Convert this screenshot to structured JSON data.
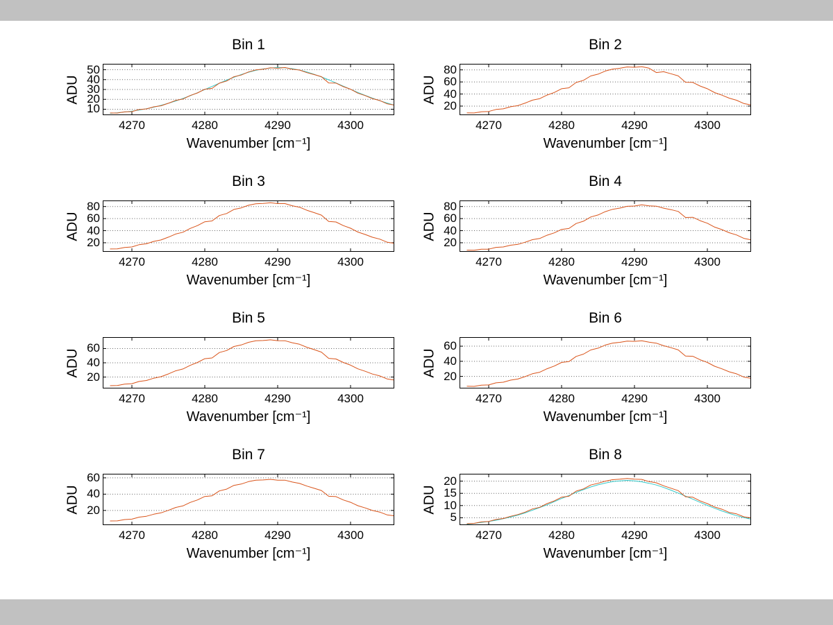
{
  "window": {
    "background": "#ffffff",
    "chrome_color": "#c1c1c1"
  },
  "palette": {
    "axis_color": "#000000",
    "grid_color": "#606060",
    "orange": "#D95319",
    "cyan": "#33C9C9"
  },
  "chart_data": [
    {
      "type": "line",
      "title": "Bin 1",
      "xlabel": "Wavenumber [cm⁻¹]",
      "ylabel": "ADU",
      "xlim": [
        4266,
        4306
      ],
      "ylim": [
        4,
        56
      ],
      "xticks": [
        4270,
        4280,
        4290,
        4300
      ],
      "yticks": [
        10,
        20,
        30,
        40,
        50
      ],
      "grid": "horizontal-dotted",
      "x_start": 4267,
      "x_step": 1,
      "series": [
        {
          "name": "cyan",
          "color": "#33C9C9",
          "values": [
            5.8,
            6.4,
            7.2,
            8.1,
            9.2,
            10.5,
            12.1,
            13.9,
            16.0,
            18.3,
            20.9,
            23.7,
            26.7,
            29.9,
            33.1,
            36.3,
            39.5,
            42.4,
            45.1,
            47.5,
            49.4,
            50.8,
            51.7,
            52.3,
            52.0,
            51.1,
            49.7,
            47.8,
            45.4,
            42.7,
            39.8,
            36.6,
            33.4,
            30.2,
            27.0,
            24.0,
            21.2,
            18.6,
            16.3,
            14.2
          ]
        },
        {
          "name": "orange",
          "color": "#D95319",
          "values": [
            6.2,
            6.1,
            7.4,
            7.6,
            9.7,
            10.3,
            12.4,
            13.5,
            16.0,
            18.9,
            20.3,
            23.9,
            26.5,
            30.3,
            31.1,
            36.4,
            38.6,
            42.9,
            44.6,
            47.8,
            49.8,
            50.5,
            51.9,
            51.5,
            52.2,
            50.6,
            49.7,
            47.1,
            45.1,
            43.0,
            36.6,
            36.5,
            32.9,
            30.3,
            26.3,
            23.8,
            20.8,
            18.8,
            15.5,
            14.2
          ]
        }
      ]
    },
    {
      "type": "line",
      "title": "Bin 2",
      "xlabel": "Wavenumber [cm⁻¹]",
      "ylabel": "ADU",
      "xlim": [
        4266,
        4306
      ],
      "ylim": [
        5,
        90
      ],
      "xticks": [
        4270,
        4280,
        4290,
        4300
      ],
      "yticks": [
        20,
        40,
        60,
        80
      ],
      "grid": "horizontal-dotted",
      "x_start": 4267,
      "x_step": 1,
      "series": [
        {
          "name": "orange",
          "color": "#D95319",
          "values": [
            8.7,
            8.6,
            10.6,
            11.1,
            14.4,
            15.5,
            18.9,
            20.9,
            25.0,
            29.8,
            32.3,
            38.2,
            42.6,
            48.8,
            50.3,
            59.1,
            62.7,
            69.9,
            72.9,
            78.0,
            81.3,
            82.7,
            84.8,
            84.3,
            85.3,
            82.8,
            75.5,
            76.9,
            73.6,
            70.0,
            59.4,
            59.2,
            53.2,
            48.8,
            42.3,
            38.1,
            33.1,
            29.7,
            24.3,
            22.0
          ]
        }
      ]
    },
    {
      "type": "line",
      "title": "Bin 3",
      "xlabel": "Wavenumber [cm⁻¹]",
      "ylabel": "ADU",
      "xlim": [
        4266,
        4306
      ],
      "ylim": [
        5,
        90
      ],
      "xticks": [
        4270,
        4280,
        4290,
        4300
      ],
      "yticks": [
        20,
        40,
        60,
        80
      ],
      "grid": "horizontal-dotted",
      "x_start": 4267,
      "x_step": 1,
      "series": [
        {
          "name": "orange",
          "color": "#D95319",
          "values": [
            9.7,
            9.9,
            12.2,
            13.0,
            16.8,
            18.3,
            22.2,
            24.6,
            29.2,
            34.4,
            37.4,
            43.7,
            48.4,
            54.7,
            56.1,
            65.1,
            68.4,
            75.2,
            77.7,
            82.1,
            84.6,
            85.1,
            86.3,
            84.8,
            84.8,
            81.3,
            78.9,
            73.8,
            69.9,
            65.8,
            55.2,
            54.4,
            48.4,
            44.0,
            37.7,
            33.7,
            29.1,
            26.0,
            21.0,
            19.1
          ]
        }
      ]
    },
    {
      "type": "line",
      "title": "Bin 4",
      "xlabel": "Wavenumber [cm⁻¹]",
      "ylabel": "ADU",
      "xlim": [
        4266,
        4306
      ],
      "ylim": [
        5,
        90
      ],
      "xticks": [
        4270,
        4280,
        4290,
        4300
      ],
      "yticks": [
        20,
        40,
        60,
        80
      ],
      "grid": "horizontal-dotted",
      "x_start": 4267,
      "x_step": 1,
      "series": [
        {
          "name": "orange",
          "color": "#D95319",
          "values": [
            7.8,
            7.5,
            9.2,
            9.4,
            12.3,
            13.0,
            15.9,
            17.3,
            20.9,
            25.1,
            27.1,
            32.4,
            36.4,
            42.1,
            43.6,
            51.9,
            55.7,
            62.7,
            66.0,
            71.5,
            75.4,
            77.4,
            80.4,
            80.8,
            82.8,
            81.2,
            80.6,
            77.2,
            74.8,
            71.9,
            61.9,
            62.2,
            56.6,
            52.3,
            45.9,
            41.7,
            36.6,
            32.9,
            27.3,
            24.7
          ]
        }
      ]
    },
    {
      "type": "line",
      "title": "Bin 5",
      "xlabel": "Wavenumber [cm⁻¹]",
      "ylabel": "ADU",
      "xlim": [
        4266,
        4306
      ],
      "ylim": [
        4,
        76
      ],
      "xticks": [
        4270,
        4280,
        4290,
        4300
      ],
      "yticks": [
        20,
        40,
        60
      ],
      "grid": "horizontal-dotted",
      "x_start": 4267,
      "x_step": 1,
      "series": [
        {
          "name": "orange",
          "color": "#D95319",
          "values": [
            7.9,
            8.1,
            10.0,
            10.7,
            13.8,
            15.2,
            18.4,
            20.5,
            24.3,
            28.7,
            31.3,
            36.4,
            40.5,
            45.7,
            46.8,
            54.4,
            57.2,
            62.9,
            65.0,
            68.7,
            70.8,
            71.2,
            72.2,
            71.0,
            70.9,
            68.1,
            66.0,
            61.8,
            58.5,
            55.0,
            46.2,
            45.4,
            40.5,
            36.7,
            31.5,
            28.1,
            24.2,
            21.6,
            17.4,
            15.8
          ]
        }
      ]
    },
    {
      "type": "line",
      "title": "Bin 6",
      "xlabel": "Wavenumber [cm⁻¹]",
      "ylabel": "ADU",
      "xlim": [
        4266,
        4306
      ],
      "ylim": [
        4,
        72
      ],
      "xticks": [
        4270,
        4280,
        4290,
        4300
      ],
      "yticks": [
        20,
        40,
        60
      ],
      "grid": "horizontal-dotted",
      "x_start": 4267,
      "x_step": 1,
      "series": [
        {
          "name": "orange",
          "color": "#D95319",
          "values": [
            6.9,
            6.8,
            8.3,
            8.7,
            11.4,
            12.3,
            15.0,
            16.5,
            19.7,
            23.5,
            25.5,
            30.1,
            33.7,
            38.5,
            39.6,
            46.5,
            49.5,
            55.0,
            57.4,
            61.5,
            64.1,
            65.1,
            66.8,
            66.4,
            67.2,
            65.3,
            64.0,
            60.6,
            58.0,
            55.1,
            46.9,
            46.6,
            42.0,
            38.5,
            33.4,
            30.0,
            26.1,
            23.4,
            19.1,
            17.4
          ]
        }
      ]
    },
    {
      "type": "line",
      "title": "Bin 7",
      "xlabel": "Wavenumber [cm⁻¹]",
      "ylabel": "ADU",
      "xlim": [
        4266,
        4306
      ],
      "ylim": [
        2,
        65
      ],
      "xticks": [
        4270,
        4280,
        4290,
        4300
      ],
      "yticks": [
        20,
        40,
        60
      ],
      "grid": "horizontal-dotted",
      "x_start": 4267,
      "x_step": 1,
      "series": [
        {
          "name": "orange",
          "color": "#D95319",
          "values": [
            7.1,
            7.2,
            8.8,
            9.3,
            11.8,
            12.9,
            15.4,
            17.1,
            20.1,
            23.6,
            25.6,
            29.8,
            32.9,
            37.2,
            38.0,
            44.0,
            46.2,
            50.8,
            52.4,
            55.4,
            57.1,
            57.4,
            58.2,
            57.2,
            57.2,
            54.9,
            53.2,
            49.9,
            47.2,
            44.5,
            37.4,
            37.0,
            32.9,
            30.0,
            25.8,
            23.1,
            20.0,
            18.0,
            14.6,
            13.4
          ]
        }
      ]
    },
    {
      "type": "line",
      "title": "Bin 8",
      "xlabel": "Wavenumber [cm⁻¹]",
      "ylabel": "ADU",
      "xlim": [
        4266,
        4306
      ],
      "ylim": [
        2,
        23
      ],
      "xticks": [
        4270,
        4280,
        4290,
        4300
      ],
      "yticks": [
        5,
        10,
        15,
        20
      ],
      "grid": "horizontal-dotted",
      "x_start": 4267,
      "x_step": 1,
      "series": [
        {
          "name": "cyan",
          "color": "#33C9C9",
          "values": [
            2.4,
            2.7,
            3.1,
            3.5,
            4.0,
            4.6,
            5.3,
            6.1,
            7.0,
            8.1,
            9.2,
            10.3,
            11.6,
            12.9,
            14.1,
            15.4,
            16.5,
            17.6,
            18.5,
            19.2,
            19.8,
            20.1,
            20.3,
            20.1,
            19.7,
            19.1,
            18.4,
            17.4,
            16.3,
            15.1,
            13.9,
            12.6,
            11.3,
            10.1,
            8.9,
            7.8,
            6.8,
            5.9,
            5.1,
            4.4
          ]
        },
        {
          "name": "orange",
          "color": "#D95319",
          "values": [
            2.6,
            2.7,
            3.3,
            3.5,
            4.3,
            4.7,
            5.6,
            6.3,
            7.3,
            8.6,
            9.3,
            10.8,
            11.9,
            13.4,
            13.8,
            15.9,
            16.8,
            18.4,
            19.1,
            20.0,
            20.6,
            20.8,
            21.1,
            20.8,
            20.7,
            19.8,
            19.3,
            18.1,
            17.1,
            16.1,
            13.6,
            13.4,
            11.9,
            10.8,
            9.4,
            8.5,
            7.2,
            6.6,
            5.4,
            4.9
          ]
        }
      ]
    }
  ]
}
